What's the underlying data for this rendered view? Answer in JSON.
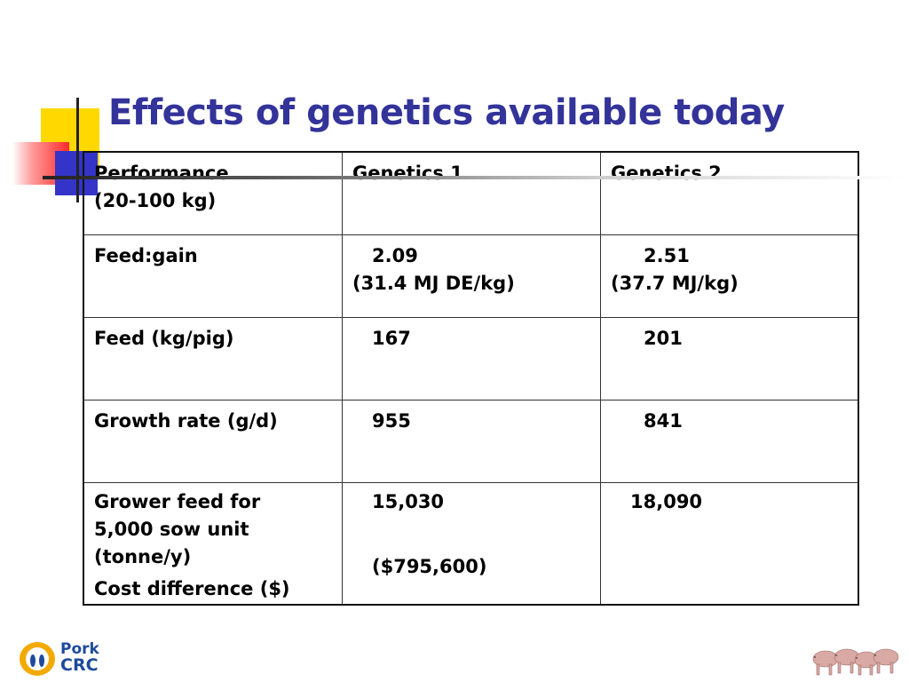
{
  "slide": {
    "title": "Effects of genetics available today"
  },
  "table": {
    "header": {
      "col1_line1": "Performance",
      "col1_line2": "(20-100 kg)",
      "col2": "Genetics 1",
      "col3": "Genetics 2"
    },
    "rows": [
      {
        "label": "Feed:gain",
        "g1": "2.09",
        "g1_sub": "(31.4 MJ DE/kg)",
        "g2": "2.51",
        "g2_sub": "(37.7 MJ/kg)"
      },
      {
        "label": "Feed (kg/pig)",
        "g1": "167",
        "g2": "201"
      },
      {
        "label": "Growth rate (g/d)",
        "g1": "955",
        "g2": "841"
      },
      {
        "label_lines": [
          "Grower feed for",
          "5,000 sow unit",
          "(tonne/y)",
          "Cost difference ($)"
        ],
        "g1": "15,030",
        "g1_cost": "($795,600)",
        "g2": "18,090"
      }
    ]
  },
  "logo": {
    "line1": "Pork",
    "line2": "CRC"
  },
  "colors": {
    "title": "#33339a",
    "accent_yellow": "#ffd800",
    "accent_blue": "#3435c8",
    "accent_red": "#ff2a2a"
  },
  "icons": {
    "logo": "pork-crc-logo-icon",
    "pigs": "pigs-illustration-icon"
  }
}
